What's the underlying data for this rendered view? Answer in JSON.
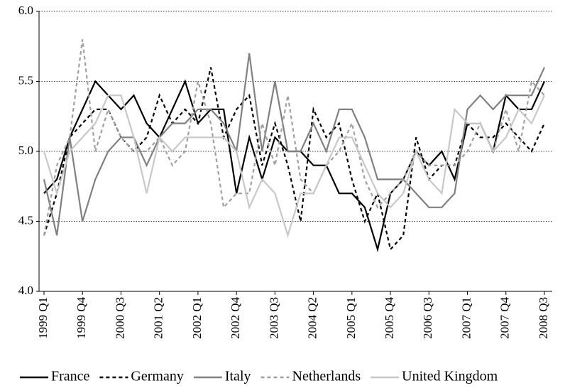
{
  "chart_data": {
    "type": "line",
    "categories": [
      "1999 Q1",
      null,
      null,
      "1999 Q4",
      null,
      null,
      "2000 Q3",
      null,
      null,
      "2001 Q2",
      null,
      null,
      "2002 Q1",
      null,
      null,
      "2002 Q4",
      null,
      null,
      "2003 Q3",
      null,
      null,
      "2004 Q2",
      null,
      null,
      "2005 Q1",
      null,
      null,
      "2005 Q4",
      null,
      null,
      "2006 Q3",
      null,
      null,
      "2007 Q1",
      null,
      null,
      "2007 Q4",
      null,
      null,
      "2008 Q3"
    ],
    "ylim": [
      4,
      6
    ],
    "yticks": [
      {
        "value": 4,
        "label": "4.0"
      },
      4.5,
      {
        "value": 5,
        "label": "5.0"
      },
      5.5,
      {
        "value": 6,
        "label": "6.0"
      }
    ],
    "grid": true,
    "legend": "bottom",
    "series": [
      {
        "name": "France",
        "color": "#000000",
        "dashed": false,
        "values": [
          4.7,
          4.8,
          5.1,
          5.3,
          5.5,
          5.4,
          5.3,
          5.4,
          5.2,
          5.1,
          5.3,
          5.5,
          5.2,
          5.3,
          5.3,
          4.7,
          5.1,
          4.8,
          5.1,
          5.0,
          5.0,
          4.9,
          4.9,
          4.7,
          4.7,
          4.6,
          4.3,
          4.7,
          4.8,
          5.0,
          4.9,
          5.0,
          4.8,
          5.2,
          5.2,
          5.0,
          5.4,
          5.3,
          5.3,
          5.5
        ]
      },
      {
        "name": "Germany",
        "color": "#000000",
        "dashed": true,
        "values": [
          4.4,
          4.7,
          5.1,
          5.2,
          5.3,
          5.3,
          5.1,
          5.0,
          5.1,
          5.4,
          5.2,
          5.3,
          5.2,
          5.6,
          5.1,
          5.3,
          5.4,
          4.9,
          5.2,
          4.9,
          4.5,
          5.3,
          5.1,
          5.2,
          4.8,
          4.5,
          4.7,
          4.3,
          4.4,
          5.1,
          4.8,
          4.9,
          4.9,
          5.2,
          5.1,
          5.1,
          5.2,
          5.1,
          5.0,
          5.2
        ]
      },
      {
        "name": "Italy",
        "color": "#808080",
        "dashed": false,
        "values": [
          4.8,
          4.4,
          5.1,
          4.5,
          4.8,
          5.0,
          5.1,
          5.1,
          4.9,
          5.1,
          5.2,
          5.2,
          5.3,
          5.3,
          5.2,
          5.0,
          5.7,
          5.0,
          5.5,
          5.0,
          5.0,
          5.2,
          5.0,
          5.3,
          5.3,
          5.1,
          4.8,
          4.8,
          4.8,
          4.7,
          4.6,
          4.6,
          4.7,
          5.3,
          5.4,
          5.3,
          5.4,
          5.4,
          5.4,
          5.6
        ]
      },
      {
        "name": "Netherlands",
        "color": "#a0a0a0",
        "dashed": true,
        "values": [
          4.4,
          4.9,
          5.1,
          5.8,
          5.0,
          5.3,
          5.1,
          5.0,
          5.0,
          5.1,
          4.9,
          5.0,
          5.5,
          5.2,
          4.6,
          4.7,
          4.7,
          5.2,
          4.9,
          5.4,
          4.8,
          4.7,
          4.9,
          5.0,
          5.2,
          4.8,
          4.6,
          4.7,
          4.8,
          5.0,
          4.9,
          4.9,
          4.9,
          5.0,
          5.2,
          5.0,
          5.3,
          5.0,
          5.5,
          5.4
        ]
      },
      {
        "name": "United Kingdom",
        "color": "#c8c8c8",
        "dashed": false,
        "values": [
          5.0,
          4.7,
          5.0,
          5.1,
          5.2,
          5.4,
          5.4,
          5.1,
          4.7,
          5.1,
          5.0,
          5.1,
          5.1,
          5.1,
          5.1,
          5.0,
          4.6,
          4.8,
          4.7,
          4.4,
          4.7,
          4.7,
          4.9,
          5.1,
          5.1,
          4.9,
          4.7,
          4.6,
          4.7,
          5.0,
          4.8,
          4.7,
          5.3,
          5.2,
          5.2,
          5.0,
          5.1,
          5.3,
          5.2,
          5.4
        ]
      }
    ]
  }
}
